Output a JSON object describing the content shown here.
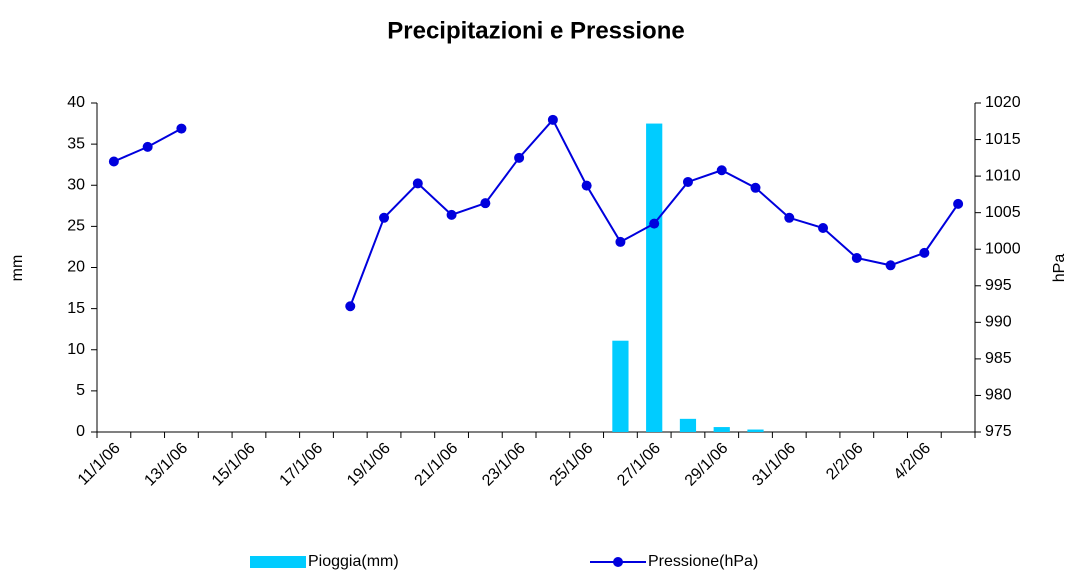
{
  "chart_data": {
    "type": "bar-line",
    "title": "Precipitazioni  e Pressione",
    "categories": [
      "11/1/06",
      null,
      "13/1/06",
      null,
      "15/1/06",
      null,
      "17/1/06",
      null,
      "19/1/06",
      null,
      "21/1/06",
      null,
      "23/1/06",
      null,
      "25/1/06",
      null,
      "27/1/06",
      null,
      "29/1/06",
      null,
      "31/1/06",
      null,
      "2/2/06",
      null,
      "4/2/06",
      null
    ],
    "y_label": "mm",
    "y2_label": "hPa",
    "ylim": [
      0,
      40
    ],
    "yticks": [
      0,
      5,
      10,
      15,
      20,
      25,
      30,
      35,
      40
    ],
    "y2lim": [
      975,
      1020
    ],
    "y2ticks": [
      975,
      980,
      985,
      990,
      995,
      1000,
      1005,
      1010,
      1015,
      1020
    ],
    "legend": "bottom",
    "series": [
      {
        "name": "Pioggia(mm)",
        "type": "bar",
        "color": "#00ccff",
        "values": [
          0,
          0,
          0,
          0,
          0,
          0,
          0,
          0,
          0,
          0,
          0,
          0,
          0,
          0,
          0,
          11.1,
          37.5,
          1.6,
          0.6,
          0.3,
          0,
          0,
          0,
          0,
          0,
          0
        ]
      },
      {
        "name": "Pressione(hPa)",
        "type": "line",
        "axis": "y2",
        "color": "#0000dd",
        "values": [
          1012,
          1014,
          1016.5,
          null,
          null,
          null,
          null,
          992.2,
          1004.3,
          1009,
          1004.7,
          1006.3,
          1012.5,
          1017.7,
          1008.7,
          1001,
          1003.5,
          1009.2,
          1010.8,
          1008.4,
          1004.3,
          1002.9,
          998.8,
          997.8,
          999.5,
          1006.2
        ]
      }
    ]
  }
}
